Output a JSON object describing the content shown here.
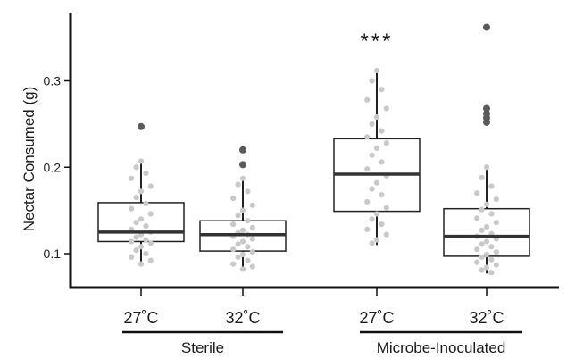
{
  "chart_data": {
    "type": "box",
    "ylabel": "Nectar Consumed (g)",
    "ylim": [
      0.07,
      0.38
    ],
    "y_ticks": [
      0.1,
      0.2,
      0.3
    ],
    "y_tick_labels": [
      "0.1",
      "0.2",
      "0.3"
    ],
    "grid": false,
    "annotation": "***",
    "groups": [
      {
        "label": "Sterile",
        "members": [
          0,
          1
        ]
      },
      {
        "label": "Microbe-Inoculated",
        "members": [
          2,
          3
        ]
      }
    ],
    "categories": [
      "27˚C",
      "32˚C",
      "27˚C",
      "32˚C"
    ],
    "boxes": [
      {
        "q1": 0.114,
        "median": 0.125,
        "q3": 0.159,
        "whisker_low": 0.088,
        "whisker_high": 0.208,
        "outliers": [
          0.247
        ],
        "points": [
          0.207,
          0.2,
          0.193,
          0.187,
          0.178,
          0.172,
          0.165,
          0.158,
          0.152,
          0.146,
          0.14,
          0.136,
          0.132,
          0.128,
          0.125,
          0.122,
          0.119,
          0.116,
          0.114,
          0.112,
          0.108,
          0.104,
          0.1,
          0.096,
          0.092,
          0.088
        ]
      },
      {
        "q1": 0.103,
        "median": 0.122,
        "q3": 0.138,
        "whisker_low": 0.081,
        "whisker_high": 0.188,
        "outliers": [
          0.203,
          0.22
        ],
        "points": [
          0.187,
          0.18,
          0.172,
          0.164,
          0.156,
          0.15,
          0.144,
          0.138,
          0.134,
          0.13,
          0.127,
          0.124,
          0.122,
          0.12,
          0.117,
          0.114,
          0.111,
          0.108,
          0.105,
          0.102,
          0.099,
          0.096,
          0.092,
          0.088,
          0.085,
          0.082
        ]
      },
      {
        "q1": 0.149,
        "median": 0.192,
        "q3": 0.233,
        "whisker_low": 0.11,
        "whisker_high": 0.313,
        "outliers": [],
        "points": [
          0.312,
          0.3,
          0.29,
          0.278,
          0.268,
          0.258,
          0.25,
          0.242,
          0.235,
          0.228,
          0.222,
          0.214,
          0.206,
          0.198,
          0.19,
          0.182,
          0.175,
          0.168,
          0.16,
          0.153,
          0.146,
          0.14,
          0.134,
          0.128,
          0.122,
          0.116,
          0.112
        ]
      },
      {
        "q1": 0.097,
        "median": 0.12,
        "q3": 0.152,
        "whisker_low": 0.077,
        "whisker_high": 0.201,
        "outliers": [
          0.252,
          0.257,
          0.262,
          0.268,
          0.362
        ],
        "points": [
          0.2,
          0.188,
          0.178,
          0.17,
          0.163,
          0.157,
          0.151,
          0.146,
          0.141,
          0.136,
          0.131,
          0.127,
          0.123,
          0.12,
          0.117,
          0.114,
          0.111,
          0.108,
          0.105,
          0.102,
          0.099,
          0.096,
          0.093,
          0.09,
          0.087,
          0.084,
          0.081,
          0.078
        ]
      }
    ]
  }
}
